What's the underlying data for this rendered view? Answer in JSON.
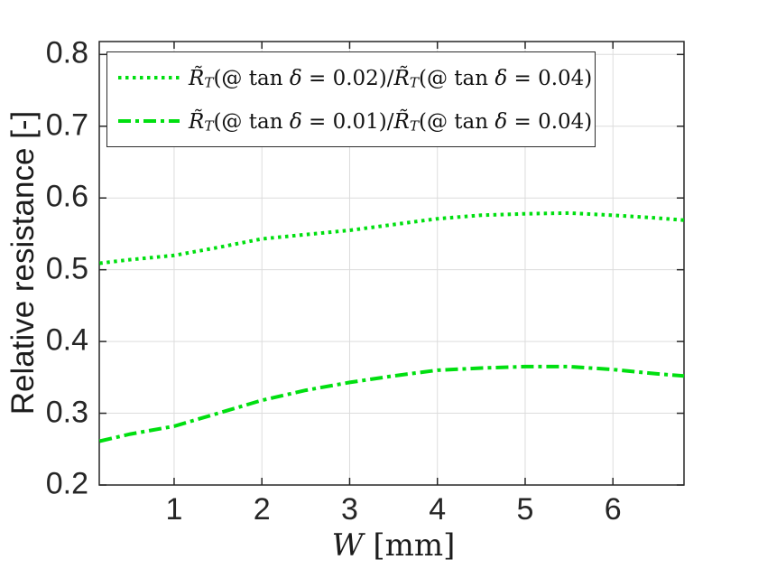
{
  "axes": {
    "ylabel": "Relative resistance [-]",
    "xlabel_parts": [
      {
        "t": "W",
        "s": "i"
      },
      {
        "t": " [mm]",
        "s": "n"
      }
    ],
    "xtick_labels": [
      "1",
      "2",
      "3",
      "4",
      "5",
      "6"
    ],
    "ytick_labels": [
      "0.2",
      "0.3",
      "0.4",
      "0.5",
      "0.6",
      "0.7",
      "0.8"
    ]
  },
  "legend": {
    "entries": [
      {
        "linestyle": "dotted",
        "parts": [
          {
            "t": "R̃",
            "s": "i"
          },
          {
            "t": "T",
            "s": "sub"
          },
          {
            "t": "(@ tan ",
            "s": "n"
          },
          {
            "t": "δ",
            "s": "i"
          },
          {
            "t": " = 0.02)/",
            "s": "n"
          },
          {
            "t": "R̃",
            "s": "i"
          },
          {
            "t": "T",
            "s": "sub"
          },
          {
            "t": "(@ tan ",
            "s": "n"
          },
          {
            "t": "δ",
            "s": "i"
          },
          {
            "t": " = 0.04)",
            "s": "n"
          }
        ]
      },
      {
        "linestyle": "dashdot",
        "parts": [
          {
            "t": "R̃",
            "s": "i"
          },
          {
            "t": "T",
            "s": "sub"
          },
          {
            "t": "(@ tan ",
            "s": "n"
          },
          {
            "t": "δ",
            "s": "i"
          },
          {
            "t": " = 0.01)/",
            "s": "n"
          },
          {
            "t": "R̃",
            "s": "i"
          },
          {
            "t": "T",
            "s": "sub"
          },
          {
            "t": "(@ tan ",
            "s": "n"
          },
          {
            "t": "δ",
            "s": "i"
          },
          {
            "t": " = 0.04)",
            "s": "n"
          }
        ]
      }
    ]
  },
  "chart_data": {
    "type": "line",
    "title": "",
    "xlabel": "W [mm]",
    "ylabel": "Relative resistance [-]",
    "xlim": [
      0.147,
      6.81
    ],
    "ylim": [
      0.2,
      0.818
    ],
    "xticks": [
      1,
      2,
      3,
      4,
      5,
      6
    ],
    "yticks": [
      0.2,
      0.3,
      0.4,
      0.5,
      0.6,
      0.7,
      0.8
    ],
    "grid": true,
    "legend_position": "top-inside",
    "colors": {
      "curve": "#00df10",
      "grid": "#dcdcdc",
      "axis": "#262626",
      "text": "#262626"
    },
    "x": [
      0.15,
      0.5,
      1.0,
      1.5,
      2.0,
      2.5,
      3.0,
      3.5,
      4.0,
      4.5,
      5.0,
      5.5,
      6.0,
      6.5,
      6.81
    ],
    "series": [
      {
        "name": "R̃_T(@ tan δ = 0.02)/R̃_T(@ tan δ = 0.04)",
        "linestyle": "dotted",
        "values": [
          0.509,
          0.514,
          0.52,
          0.531,
          0.543,
          0.549,
          0.555,
          0.563,
          0.571,
          0.576,
          0.578,
          0.579,
          0.576,
          0.572,
          0.569
        ]
      },
      {
        "name": "R̃_T(@ tan δ = 0.01)/R̃_T(@ tan δ = 0.04)",
        "linestyle": "dashdot",
        "values": [
          0.261,
          0.271,
          0.282,
          0.3,
          0.318,
          0.332,
          0.343,
          0.352,
          0.36,
          0.363,
          0.365,
          0.365,
          0.361,
          0.355,
          0.352
        ]
      }
    ]
  }
}
